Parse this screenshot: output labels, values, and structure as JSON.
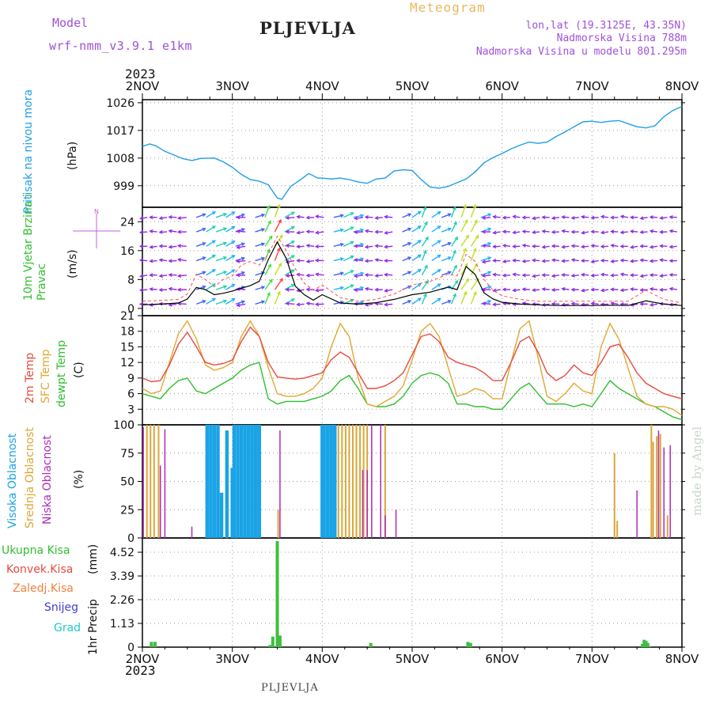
{
  "header": {
    "model_label": "Model",
    "model_name": "wrf-nmm_v3.9.1 e1km",
    "title": "PLJEVLJA",
    "meteogram": "Meteogram",
    "lonlat": "lon,lat (19.3125E, 43.35N)",
    "elevation": "Nadmorska Visina 788m",
    "model_elevation": "Nadmorska Visina u modelu 801.295m",
    "top_year": "2023",
    "bottom_year": "2023",
    "footer_title": "PLJEVLJA",
    "watermark": "made by Angel"
  },
  "colors": {
    "pressure": "#1e9ee6",
    "temp2m": "#e84a3e",
    "sfc": "#dfa832",
    "dewpt": "#2fbf2f",
    "high_cloud": "#1aa3e6",
    "mid_cloud": "#dca638",
    "low_cloud": "#b02ab8",
    "precip": "#3fbf3f",
    "header_purple": "#a050d8",
    "meteogram": "#e8b860"
  },
  "chart_data": [
    {
      "type": "line",
      "panel": "pressure",
      "xlabel": "",
      "x_ticks": [
        "2NOV",
        "3NOV",
        "4NOV",
        "5NOV",
        "6NOV",
        "7NOV",
        "8NOV"
      ],
      "ylabel_left": "Pritisak na nivou mora",
      "ylabel_unit": "(hPa)",
      "y_ticks": [
        999,
        1008,
        1017,
        1026
      ],
      "ylim": [
        992,
        1027
      ],
      "grid": true,
      "series": [
        {
          "x": [
            0,
            0.08,
            0.15,
            0.25,
            0.35,
            0.45,
            0.55,
            0.65,
            0.8,
            0.9,
            1.0,
            1.1,
            1.2,
            1.3,
            1.4,
            1.5,
            1.55,
            1.65,
            1.75,
            1.85,
            1.95,
            2.0,
            2.1,
            2.2,
            2.3,
            2.4,
            2.5,
            2.6,
            2.7,
            2.8,
            2.9,
            3.0,
            3.1,
            3.2,
            3.3,
            3.4,
            3.5,
            3.6,
            3.7,
            3.8,
            3.9,
            4.0,
            4.1,
            4.2,
            4.3,
            4.4,
            4.5,
            4.6,
            4.7,
            4.8,
            4.9,
            5.0,
            5.1,
            5.2,
            5.3,
            5.4,
            5.5,
            5.6,
            5.7,
            5.8,
            5.9,
            6.0
          ],
          "values": [
            1011.8,
            1012.6,
            1012,
            1010.2,
            1009,
            1007.8,
            1007.2,
            1007.9,
            1008,
            1006.8,
            1005,
            1002.7,
            1001,
            1000.5,
            999.3,
            995,
            994.6,
            998.8,
            1000.8,
            1003,
            1001.5,
            1001.5,
            1001.2,
            1001.5,
            1001,
            1000.2,
            999.8,
            1001.2,
            1001.5,
            1003.8,
            1004.2,
            1004,
            1001,
            998.6,
            998.2,
            998.8,
            1000,
            1001.2,
            1003.5,
            1006.5,
            1008.2,
            1009.5,
            1011,
            1012.2,
            1013.2,
            1012.8,
            1013.2,
            1015,
            1016.5,
            1018.2,
            1019.8,
            1020,
            1019.6,
            1020,
            1020.2,
            1019.2,
            1018.2,
            1017.8,
            1018.5,
            1021.5,
            1023.5,
            1024.8
          ]
        }
      ]
    },
    {
      "type": "line",
      "panel": "wind",
      "ylabel_left": "10m Vjetar Brzina i Pravac",
      "ylabel_unit": "(m/s)",
      "compass": "N",
      "y_ticks": [
        0,
        8,
        16,
        24
      ],
      "ylim": [
        -2,
        28
      ],
      "grid": true,
      "series": [
        {
          "x": [
            0,
            0.2,
            0.4,
            0.5,
            0.6,
            0.7,
            0.8,
            0.9,
            1.0,
            1.1,
            1.2,
            1.3,
            1.4,
            1.5,
            1.6,
            1.7,
            1.8,
            1.9,
            2.0,
            2.2,
            2.4,
            2.6,
            2.8,
            3.0,
            3.2,
            3.4,
            3.5,
            3.6,
            3.7,
            3.8,
            3.9,
            4.0,
            4.2,
            4.4,
            4.6,
            4.8,
            5.0,
            5.2,
            5.4,
            5.6,
            5.8,
            6.0
          ],
          "values": [
            1,
            1.2,
            1.5,
            2.6,
            5.8,
            5.2,
            3.8,
            4.2,
            4.8,
            5.6,
            6.3,
            7.5,
            13.5,
            18.4,
            13.8,
            6.2,
            3.8,
            2.3,
            3.8,
            1.5,
            1.2,
            1.6,
            2.5,
            3.8,
            4.5,
            5.9,
            5.2,
            11.6,
            9.4,
            4.3,
            2.6,
            1.7,
            1.2,
            1.0,
            0.8,
            0.8,
            0.8,
            0.9,
            0.8,
            2.1,
            1.2,
            0.8
          ]
        },
        {
          "x": [
            0,
            0.2,
            0.4,
            0.5,
            0.6,
            0.7,
            0.8,
            0.9,
            1.0,
            1.1,
            1.2,
            1.3,
            1.4,
            1.5,
            1.6,
            1.7,
            1.8,
            1.9,
            2.0,
            2.2,
            2.4,
            2.6,
            2.8,
            3.0,
            3.2,
            3.4,
            3.5,
            3.6,
            3.7,
            3.8,
            3.9,
            4.0,
            4.2,
            4.4,
            4.6,
            4.8,
            5.0,
            5.2,
            5.4,
            5.6,
            5.8,
            6.0
          ],
          "values": [
            2,
            2.2,
            2.5,
            4,
            9.5,
            8,
            6,
            8,
            9,
            12,
            13,
            12,
            15,
            20,
            16,
            11,
            7,
            5,
            6.5,
            3,
            2,
            2.5,
            4,
            6.5,
            7.5,
            9.5,
            9,
            15,
            13,
            8,
            5,
            3.5,
            2.5,
            2,
            2,
            2,
            2,
            2,
            2,
            5,
            2.5,
            1.5
          ]
        }
      ],
      "arrows_rows": [
        24,
        20,
        16,
        12,
        8,
        4,
        0
      ],
      "arrow_cols": 55
    },
    {
      "type": "line",
      "panel": "temperature",
      "ylabel_left": [
        "2m Temp",
        "SFC Temp",
        "dewpt Temp"
      ],
      "ylabel_unit": "(C)",
      "y_ticks": [
        0,
        3,
        6,
        9,
        12,
        15,
        18,
        21
      ],
      "ylim": [
        0,
        21
      ],
      "grid": true,
      "series": [
        {
          "name": "2m Temp",
          "x": [
            0,
            0.1,
            0.2,
            0.3,
            0.4,
            0.5,
            0.6,
            0.7,
            0.8,
            0.9,
            1.0,
            1.1,
            1.2,
            1.3,
            1.4,
            1.5,
            1.6,
            1.7,
            1.8,
            1.9,
            2.0,
            2.1,
            2.2,
            2.3,
            2.4,
            2.5,
            2.6,
            2.7,
            2.8,
            2.9,
            3.0,
            3.1,
            3.2,
            3.3,
            3.4,
            3.5,
            3.6,
            3.7,
            3.8,
            3.9,
            4.0,
            4.1,
            4.2,
            4.3,
            4.4,
            4.5,
            4.6,
            4.7,
            4.8,
            4.9,
            5.0,
            5.1,
            5.2,
            5.3,
            5.4,
            5.5,
            5.6,
            5.7,
            5.8,
            5.9,
            6.0
          ],
          "values": [
            9,
            8.3,
            8.5,
            11.5,
            15.5,
            17.8,
            15,
            12,
            11.5,
            11.8,
            12.5,
            16,
            18.8,
            17,
            12,
            9.2,
            9,
            8.8,
            9,
            9.5,
            10,
            12.5,
            14,
            13,
            10,
            7,
            7,
            7.5,
            8.5,
            10,
            13.5,
            17,
            17.5,
            16,
            13,
            12,
            11.5,
            11,
            10,
            8.5,
            8.5,
            12,
            16,
            17,
            14,
            10,
            8.5,
            9.5,
            11.5,
            10,
            9.5,
            12,
            15,
            15.5,
            13,
            10,
            8,
            7,
            6,
            5.5,
            5
          ]
        },
        {
          "name": "SFC Temp",
          "x": [
            0,
            0.1,
            0.2,
            0.3,
            0.4,
            0.5,
            0.6,
            0.7,
            0.8,
            0.9,
            1.0,
            1.1,
            1.2,
            1.3,
            1.4,
            1.5,
            1.6,
            1.7,
            1.8,
            1.9,
            2.0,
            2.1,
            2.2,
            2.3,
            2.4,
            2.5,
            2.6,
            2.7,
            2.8,
            2.9,
            3.0,
            3.1,
            3.2,
            3.3,
            3.4,
            3.5,
            3.6,
            3.7,
            3.8,
            3.9,
            4.0,
            4.1,
            4.2,
            4.3,
            4.4,
            4.5,
            4.6,
            4.7,
            4.8,
            4.9,
            5.0,
            5.1,
            5.2,
            5.3,
            5.4,
            5.5,
            5.6,
            5.7,
            5.8,
            5.9,
            6.0
          ],
          "values": [
            7,
            6,
            6.5,
            12,
            17.5,
            20,
            16.5,
            11.5,
            10.5,
            11,
            12,
            17,
            20,
            17,
            11,
            6,
            5.5,
            5.5,
            6,
            7,
            9,
            15,
            19.5,
            17,
            9,
            4,
            3.5,
            4.5,
            5.5,
            7.5,
            12.5,
            18,
            19.5,
            17,
            11,
            5.5,
            6,
            7,
            6.5,
            5,
            5,
            12,
            18.5,
            20,
            13,
            5.5,
            4.5,
            6,
            8,
            6.5,
            6,
            15,
            19.5,
            16.5,
            11,
            5.5,
            4,
            3.5,
            3.5,
            3,
            1.8
          ]
        },
        {
          "name": "dewpt Temp",
          "x": [
            0,
            0.1,
            0.2,
            0.3,
            0.4,
            0.5,
            0.6,
            0.7,
            0.8,
            0.9,
            1.0,
            1.1,
            1.2,
            1.3,
            1.4,
            1.5,
            1.6,
            1.7,
            1.8,
            1.9,
            2.0,
            2.1,
            2.2,
            2.3,
            2.4,
            2.5,
            2.6,
            2.7,
            2.8,
            2.9,
            3.0,
            3.1,
            3.2,
            3.3,
            3.4,
            3.5,
            3.6,
            3.7,
            3.8,
            3.9,
            4.0,
            4.1,
            4.2,
            4.3,
            4.4,
            4.5,
            4.6,
            4.7,
            4.8,
            4.9,
            5.0,
            5.1,
            5.2,
            5.3,
            5.4,
            5.5,
            5.6,
            5.7,
            5.8,
            5.9,
            6.0
          ],
          "values": [
            6,
            5.5,
            5,
            7,
            8.5,
            9,
            6.5,
            6,
            7,
            8,
            9,
            10.5,
            11.5,
            12,
            5,
            4,
            4.5,
            4.5,
            4.5,
            5,
            5.5,
            6.5,
            8.5,
            9.5,
            7,
            4,
            3.5,
            3.5,
            4,
            5.5,
            8,
            9.5,
            10,
            9.5,
            8,
            4,
            4,
            3.5,
            3.5,
            3,
            3,
            5,
            7,
            8,
            6,
            4,
            4,
            4,
            3.5,
            4,
            3.5,
            6,
            8.5,
            7,
            6,
            5,
            4,
            3.5,
            2.5,
            1.5,
            1
          ]
        }
      ]
    },
    {
      "type": "bar",
      "panel": "clouds",
      "ylabel_left": [
        "Visoka Oblacnost",
        "Srednja Oblacnost",
        "Niska Oblacnost"
      ],
      "ylabel_unit": "(%)",
      "y_ticks": [
        0,
        25,
        50,
        75,
        100
      ],
      "ylim": [
        0,
        100
      ],
      "grid": true,
      "series": [
        {
          "name": "Visoka Oblacnost",
          "x": [
            0.72,
            0.76,
            0.8,
            0.84,
            0.88,
            0.94,
            1.0,
            1.02,
            1.06,
            1.1,
            1.14,
            1.18,
            1.22,
            1.26,
            1.3,
            2.0,
            2.02,
            2.06,
            2.1,
            2.14
          ],
          "values": [
            100,
            100,
            100,
            100,
            40,
            95,
            62,
            100,
            100,
            100,
            100,
            100,
            100,
            100,
            100,
            100,
            100,
            100,
            100,
            100
          ]
        },
        {
          "name": "Srednja Oblacnost",
          "x": [
            0.05,
            0.09,
            0.13,
            0.18,
            1.51,
            2.18,
            2.22,
            2.26,
            2.3,
            2.34,
            2.38,
            2.42,
            2.46,
            2.5,
            2.7,
            5.25,
            5.28,
            5.66,
            5.68,
            5.72,
            5.76,
            5.84
          ],
          "values": [
            100,
            100,
            100,
            100,
            25,
            100,
            100,
            100,
            100,
            100,
            100,
            100,
            100,
            100,
            100,
            75,
            15,
            100,
            85,
            90,
            92,
            20
          ]
        },
        {
          "name": "Niska Oblacnost",
          "x": [
            0.01,
            0.2,
            0.25,
            0.55,
            1.53,
            2.45,
            2.5,
            2.55,
            2.65,
            2.7,
            2.82,
            5.5,
            5.74,
            5.8,
            5.87
          ],
          "values": [
            98,
            64,
            96,
            10,
            95,
            60,
            60,
            100,
            100,
            20,
            25,
            42,
            95,
            80,
            82
          ]
        }
      ],
      "annotation": ""
    },
    {
      "type": "bar",
      "panel": "precip",
      "ylabel_left": "1hr Precip",
      "ylabel_unit": "(mm)",
      "legend": [
        "Ukupna Kisa",
        "Konvek.Kisa",
        "Zaledj.Kisa",
        "Snijeg",
        "Grad"
      ],
      "y_ticks": [
        0,
        1.13,
        2.26,
        3.39,
        4.52
      ],
      "ylim": [
        0,
        5.2
      ],
      "grid": true,
      "series": [
        {
          "name": "Ukupna Kisa",
          "x": [
            0.1,
            0.14,
            1.42,
            1.45,
            1.5,
            1.53,
            2.54,
            3.62,
            3.65,
            5.56,
            5.58,
            5.6,
            5.62,
            5.64
          ],
          "values": [
            0.25,
            0.25,
            0.1,
            0.5,
            5.05,
            0.55,
            0.2,
            0.25,
            0.2,
            0.15,
            0.35,
            0.3,
            0.2,
            0.05
          ]
        }
      ]
    }
  ]
}
